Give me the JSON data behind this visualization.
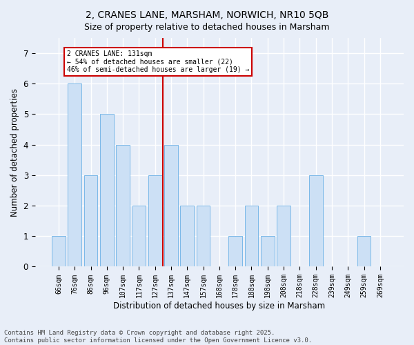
{
  "title": "2, CRANES LANE, MARSHAM, NORWICH, NR10 5QB",
  "subtitle": "Size of property relative to detached houses in Marsham",
  "xlabel": "Distribution of detached houses by size in Marsham",
  "ylabel": "Number of detached properties",
  "categories": [
    "66sqm",
    "76sqm",
    "86sqm",
    "96sqm",
    "107sqm",
    "117sqm",
    "127sqm",
    "137sqm",
    "147sqm",
    "157sqm",
    "168sqm",
    "178sqm",
    "188sqm",
    "198sqm",
    "208sqm",
    "218sqm",
    "228sqm",
    "239sqm",
    "249sqm",
    "259sqm",
    "269sqm"
  ],
  "values": [
    1,
    6,
    3,
    5,
    4,
    2,
    3,
    4,
    2,
    2,
    0,
    1,
    2,
    1,
    2,
    0,
    3,
    0,
    0,
    1,
    0
  ],
  "bar_color": "#cce0f5",
  "bar_edge_color": "#7ab8e8",
  "vline_x": 6.5,
  "vline_color": "#cc0000",
  "annotation_text": "2 CRANES LANE: 131sqm\n← 54% of detached houses are smaller (22)\n46% of semi-detached houses are larger (19) →",
  "annotation_box_color": "#ffffff",
  "annotation_box_edge": "#cc0000",
  "ylim": [
    0,
    7.5
  ],
  "yticks": [
    0,
    1,
    2,
    3,
    4,
    5,
    6,
    7
  ],
  "footer": "Contains HM Land Registry data © Crown copyright and database right 2025.\nContains public sector information licensed under the Open Government Licence v3.0.",
  "bg_color": "#e8eef8",
  "plot_bg_color": "#e8eef8",
  "grid_color": "#ffffff",
  "title_fontsize": 10,
  "footer_fontsize": 6.5
}
